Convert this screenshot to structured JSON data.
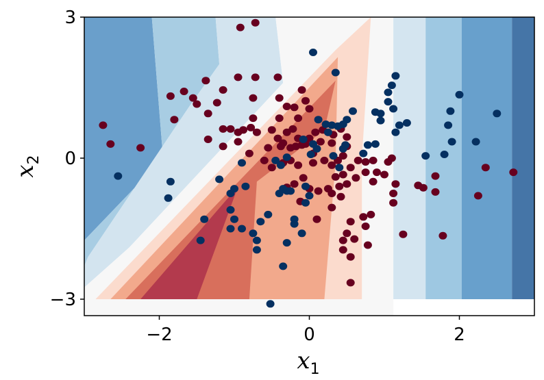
{
  "chart_data": {
    "type": "scatter",
    "title": "",
    "xlabel": "x",
    "xlabel_sub": "1",
    "ylabel": "x",
    "ylabel_sub": "2",
    "xlim": [
      -3,
      3
    ],
    "ylim": [
      -3.35,
      3
    ],
    "xticks": [
      -2,
      0,
      2
    ],
    "xtick_labels": [
      "−2",
      "0",
      "2"
    ],
    "yticks": [
      -3,
      0,
      3
    ],
    "ytick_labels": [
      "−3",
      "0",
      "3"
    ],
    "grid": false,
    "legend": "none",
    "colors": {
      "class_a": "#67001f",
      "class_b": "#053061",
      "contour_levels": [
        "#b2182b",
        "#d6604d",
        "#f4a582",
        "#fddbc7",
        "#f7f7f7",
        "#d1e5f0",
        "#92c5de",
        "#4393c3",
        "#2166ac"
      ]
    },
    "decision_regions": [
      {
        "level": "blue-2",
        "color": "#6a9fcb",
        "polygon": [
          [
            -3,
            3
          ],
          [
            -2.1,
            3
          ],
          [
            -1.95,
            0
          ],
          [
            -3,
            -1.75
          ]
        ]
      },
      {
        "level": "blue-1",
        "color": "#a8cde3",
        "polygon": [
          [
            -2.1,
            3
          ],
          [
            -1.25,
            3
          ],
          [
            -1.2,
            2
          ],
          [
            -1.6,
            1.1
          ],
          [
            -2.95,
            -2.1
          ],
          [
            -3,
            -2.3
          ],
          [
            -3,
            -1.75
          ],
          [
            -1.95,
            0
          ]
        ]
      },
      {
        "level": "light-blue",
        "color": "#d3e4ef",
        "polygon": [
          [
            -1.25,
            3
          ],
          [
            -0.45,
            3
          ],
          [
            -0.35,
            1.6
          ],
          [
            -2.4,
            -1.9
          ],
          [
            -3,
            -2.75
          ],
          [
            -3,
            -2.3
          ],
          [
            -2.95,
            -2.1
          ],
          [
            -1.6,
            1.1
          ],
          [
            -1.2,
            2
          ]
        ]
      },
      {
        "level": "neutral",
        "color": "#f7f7f7",
        "polygon": [
          [
            -0.45,
            3
          ],
          [
            1.12,
            3
          ],
          [
            1.12,
            -3.35
          ],
          [
            -3,
            -3.35
          ],
          [
            -3,
            -2.75
          ],
          [
            -2.4,
            -1.9
          ],
          [
            -0.35,
            1.6
          ]
        ]
      },
      {
        "level": "light-red",
        "color": "#fbdbcd",
        "polygon": [
          [
            0.82,
            3
          ],
          [
            0.35,
            2.3
          ],
          [
            -2.85,
            -3
          ],
          [
            0.7,
            -3
          ],
          [
            0.7,
            0
          ]
        ]
      },
      {
        "level": "red-1",
        "color": "#f2a98c",
        "polygon": [
          [
            0.38,
            2.15
          ],
          [
            -2.65,
            -3
          ],
          [
            0.2,
            -3
          ],
          [
            0.35,
            -0.1
          ]
        ]
      },
      {
        "level": "red-2",
        "color": "#d86f5c",
        "polygon": [
          [
            0.35,
            1.65
          ],
          [
            -2.45,
            -3
          ],
          [
            -0.8,
            -3
          ],
          [
            -0.7,
            -0.5
          ],
          [
            0.2,
            0.6
          ]
        ]
      },
      {
        "level": "red-3",
        "color": "#b33a4d",
        "polygon": [
          [
            -0.95,
            -0.6
          ],
          [
            -2.25,
            -3
          ],
          [
            -1.5,
            -3
          ]
        ]
      },
      {
        "level": "right-blue-1",
        "color": "#d4e5f0",
        "polygon": [
          [
            1.12,
            3
          ],
          [
            1.55,
            3
          ],
          [
            1.55,
            -3
          ],
          [
            1.12,
            -3
          ]
        ]
      },
      {
        "level": "right-blue-2",
        "color": "#9ec8e2",
        "polygon": [
          [
            1.55,
            3
          ],
          [
            2.03,
            3
          ],
          [
            2.03,
            -3
          ],
          [
            1.55,
            -3
          ]
        ]
      },
      {
        "level": "right-blue-3",
        "color": "#68a0cc",
        "polygon": [
          [
            2.03,
            3
          ],
          [
            2.7,
            3
          ],
          [
            2.7,
            -3
          ],
          [
            2.03,
            -3
          ]
        ]
      },
      {
        "level": "right-blue-4",
        "color": "#4575a7",
        "polygon": [
          [
            2.7,
            3
          ],
          [
            3,
            3
          ],
          [
            3,
            -3
          ],
          [
            2.7,
            -3
          ]
        ]
      }
    ],
    "series": [
      {
        "class": "red",
        "points": [
          [
            -0.92,
            2.78
          ],
          [
            -0.72,
            2.88
          ],
          [
            -0.42,
            1.72
          ],
          [
            -0.72,
            1.72
          ],
          [
            -0.95,
            1.72
          ],
          [
            -1.38,
            1.65
          ],
          [
            -1.67,
            1.42
          ],
          [
            -1.85,
            1.32
          ],
          [
            -1.55,
            1.28
          ],
          [
            -1.5,
            1.15
          ],
          [
            -1.23,
            1.18
          ],
          [
            -1.15,
            1.45
          ],
          [
            -0.75,
            1.28
          ],
          [
            -0.4,
            1.28
          ],
          [
            -0.1,
            1.45
          ],
          [
            -0.05,
            1.22
          ],
          [
            -0.3,
            1.1
          ],
          [
            0.0,
            1.05
          ],
          [
            -0.2,
            1.08
          ],
          [
            -0.15,
            0.85
          ],
          [
            -0.4,
            0.85
          ],
          [
            -0.75,
            0.85
          ],
          [
            -0.78,
            0.65
          ],
          [
            -1.35,
            0.95
          ],
          [
            -1.8,
            0.82
          ],
          [
            -2.75,
            0.7
          ],
          [
            -2.65,
            0.3
          ],
          [
            -2.25,
            0.22
          ],
          [
            -1.35,
            0.4
          ],
          [
            -1.15,
            0.62
          ],
          [
            -1.05,
            0.62
          ],
          [
            -0.95,
            0.55
          ],
          [
            -0.88,
            0.6
          ],
          [
            -0.7,
            0.55
          ],
          [
            -1.15,
            0.25
          ],
          [
            -0.95,
            0.35
          ],
          [
            -0.5,
            0.6
          ],
          [
            -0.42,
            0.42
          ],
          [
            -0.35,
            0.32
          ],
          [
            -0.3,
            0.55
          ],
          [
            -0.22,
            0.62
          ],
          [
            -0.15,
            0.42
          ],
          [
            -0.55,
            0.22
          ],
          [
            -0.38,
            0.25
          ],
          [
            -0.25,
            0.22
          ],
          [
            -0.18,
            0.25
          ],
          [
            -0.1,
            0.28
          ],
          [
            0.0,
            0.42
          ],
          [
            -0.05,
            0.3
          ],
          [
            0.08,
            0.55
          ],
          [
            0.18,
            0.6
          ],
          [
            0.25,
            0.55
          ],
          [
            0.32,
            0.5
          ],
          [
            0.42,
            0.62
          ],
          [
            0.5,
            0.45
          ],
          [
            0.15,
            0.35
          ],
          [
            0.3,
            0.32
          ],
          [
            0.05,
            0.1
          ],
          [
            -0.8,
            0.1
          ],
          [
            -0.6,
            -0.05
          ],
          [
            -0.5,
            -0.2
          ],
          [
            -0.35,
            -0.1
          ],
          [
            -0.25,
            -0.05
          ],
          [
            -0.15,
            -0.15
          ],
          [
            0.05,
            -0.1
          ],
          [
            0.2,
            -0.05
          ],
          [
            0.3,
            -0.15
          ],
          [
            0.38,
            -0.05
          ],
          [
            0.45,
            0.05
          ],
          [
            0.5,
            0.25
          ],
          [
            0.55,
            -0.2
          ],
          [
            0.65,
            -0.05
          ],
          [
            0.75,
            -0.08
          ],
          [
            0.85,
            -0.05
          ],
          [
            1.05,
            -0.08
          ],
          [
            1.1,
            0.0
          ],
          [
            0.9,
            -0.3
          ],
          [
            0.85,
            -0.5
          ],
          [
            0.75,
            -0.3
          ],
          [
            0.62,
            -0.42
          ],
          [
            0.5,
            -0.55
          ],
          [
            0.45,
            -0.35
          ],
          [
            0.35,
            -0.4
          ],
          [
            0.3,
            -0.75
          ],
          [
            0.4,
            -0.6
          ],
          [
            0.42,
            -0.82
          ],
          [
            0.25,
            -0.65
          ],
          [
            0.12,
            -0.7
          ],
          [
            0.0,
            -0.65
          ],
          [
            -0.08,
            -0.42
          ],
          [
            -0.2,
            -0.55
          ],
          [
            -0.3,
            -0.62
          ],
          [
            -0.12,
            -0.92
          ],
          [
            0.1,
            -1.3
          ],
          [
            0.3,
            -1.05
          ],
          [
            0.55,
            -1.35
          ],
          [
            0.72,
            -1.25
          ],
          [
            0.82,
            -1.2
          ],
          [
            0.5,
            -1.6
          ],
          [
            0.45,
            -1.75
          ],
          [
            0.6,
            -1.72
          ],
          [
            0.55,
            -2.1
          ],
          [
            0.75,
            -1.45
          ],
          [
            0.78,
            -1.85
          ],
          [
            0.45,
            -1.95
          ],
          [
            0.55,
            -2.65
          ],
          [
            1.0,
            -0.35
          ],
          [
            1.12,
            -0.95
          ],
          [
            1.12,
            -0.75
          ],
          [
            1.15,
            -0.55
          ],
          [
            1.25,
            -1.62
          ],
          [
            1.45,
            -0.58
          ],
          [
            1.52,
            -0.63
          ],
          [
            1.68,
            -0.38
          ],
          [
            1.68,
            -0.72
          ],
          [
            1.78,
            -1.65
          ],
          [
            2.25,
            -0.8
          ],
          [
            2.35,
            -0.2
          ],
          [
            2.72,
            -0.3
          ]
        ]
      },
      {
        "class": "blue",
        "points": [
          [
            0.05,
            2.25
          ],
          [
            0.35,
            1.82
          ],
          [
            1.1,
            1.55
          ],
          [
            1.15,
            1.75
          ],
          [
            1.05,
            1.4
          ],
          [
            1.12,
            1.05
          ],
          [
            0.88,
            0.98
          ],
          [
            0.95,
            0.95
          ],
          [
            0.58,
            1.0
          ],
          [
            0.5,
            0.82
          ],
          [
            0.45,
            0.72
          ],
          [
            0.12,
            0.82
          ],
          [
            0.22,
            0.72
          ],
          [
            0.3,
            0.7
          ],
          [
            0.38,
            0.68
          ],
          [
            0.25,
            0.55
          ],
          [
            0.95,
            0.8
          ],
          [
            1.2,
            0.7
          ],
          [
            1.15,
            0.55
          ],
          [
            1.3,
            0.75
          ],
          [
            1.55,
            0.05
          ],
          [
            1.8,
            0.08
          ],
          [
            1.9,
            0.35
          ],
          [
            1.85,
            0.7
          ],
          [
            1.88,
            1.0
          ],
          [
            2.0,
            1.35
          ],
          [
            2.22,
            0.35
          ],
          [
            2.5,
            0.95
          ],
          [
            0.02,
            0.08
          ],
          [
            0.1,
            0.2
          ],
          [
            0.45,
            0.2
          ],
          [
            0.32,
            0.05
          ],
          [
            0.4,
            -0.2
          ],
          [
            0.48,
            0.28
          ],
          [
            0.78,
            0.28
          ],
          [
            0.88,
            0.3
          ],
          [
            0.72,
            0.1
          ],
          [
            -0.08,
            0.4
          ],
          [
            -0.3,
            0.02
          ],
          [
            -0.38,
            -0.15
          ],
          [
            -0.45,
            -0.05
          ],
          [
            -0.9,
            -0.1
          ],
          [
            -1.0,
            -0.65
          ],
          [
            -0.85,
            -0.6
          ],
          [
            -1.2,
            -0.45
          ],
          [
            -1.05,
            -0.75
          ],
          [
            -1.05,
            -1.1
          ],
          [
            -1.0,
            -1.3
          ],
          [
            -1.05,
            -1.5
          ],
          [
            -0.9,
            -1.5
          ],
          [
            -0.75,
            -1.6
          ],
          [
            -0.65,
            -1.35
          ],
          [
            -0.7,
            -1.75
          ],
          [
            -0.55,
            -1.2
          ],
          [
            -0.7,
            -1.95
          ],
          [
            -0.4,
            -0.75
          ],
          [
            -0.35,
            -0.65
          ],
          [
            -0.3,
            -0.7
          ],
          [
            -0.25,
            -0.7
          ],
          [
            -0.05,
            -0.6
          ],
          [
            0.0,
            -0.8
          ],
          [
            -0.05,
            -0.95
          ],
          [
            -0.2,
            -1.4
          ],
          [
            -0.1,
            -1.6
          ],
          [
            -0.2,
            -1.3
          ],
          [
            -0.3,
            -1.8
          ],
          [
            -0.35,
            -2.3
          ],
          [
            -0.52,
            -3.1
          ],
          [
            -1.45,
            -1.75
          ],
          [
            -1.4,
            -1.3
          ],
          [
            -1.85,
            -0.5
          ],
          [
            -1.88,
            -0.85
          ],
          [
            -2.55,
            -0.38
          ],
          [
            0.05,
            0.3
          ],
          [
            1.05,
            1.2
          ]
        ]
      }
    ]
  }
}
